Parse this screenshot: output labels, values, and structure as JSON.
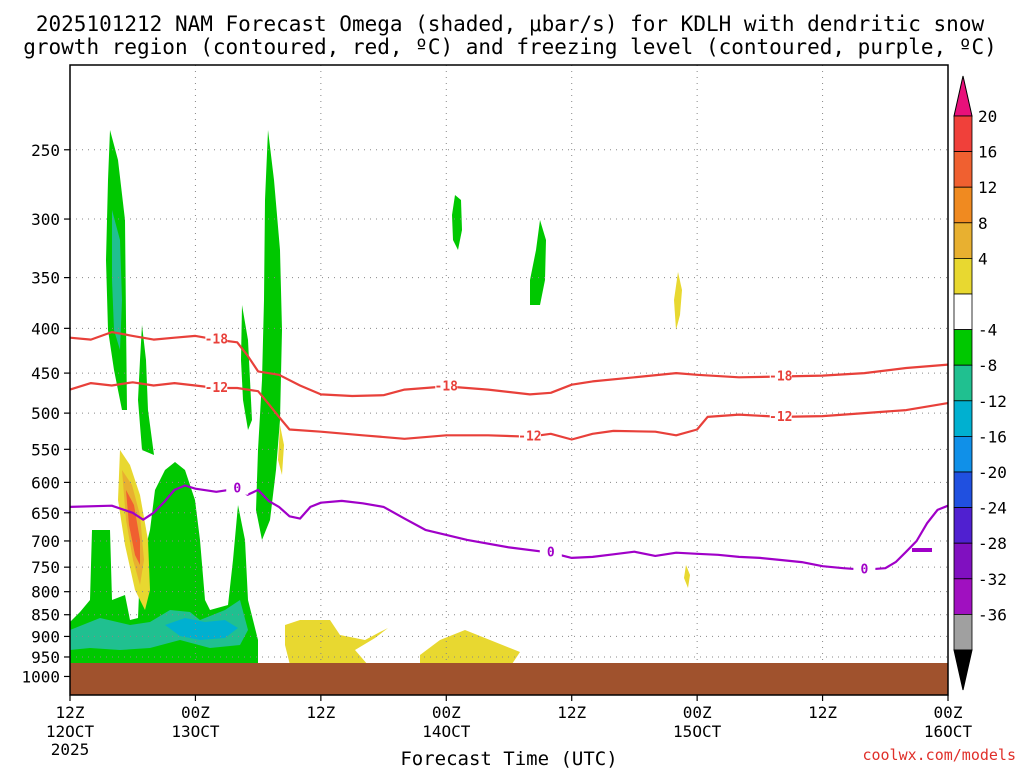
{
  "chart_data": {
    "type": "heatmap",
    "title_line1": "2025101212 NAM Forecast Omega (shaded, μbar/s) for KDLH with dendritic snow",
    "title_line2": "growth region (contoured, red, ºC) and freezing level (contoured, purple, ºC)",
    "xlabel": "Forecast Time (UTC)",
    "x_hours_range": [
      0,
      84
    ],
    "x_ticks": [
      {
        "hour": 0,
        "time": "12Z",
        "date": "12OCT",
        "year": "2025"
      },
      {
        "hour": 12,
        "time": "00Z",
        "date": "13OCT",
        "year": ""
      },
      {
        "hour": 24,
        "time": "12Z",
        "date": "",
        "year": ""
      },
      {
        "hour": 36,
        "time": "00Z",
        "date": "14OCT",
        "year": ""
      },
      {
        "hour": 48,
        "time": "12Z",
        "date": "",
        "year": ""
      },
      {
        "hour": 60,
        "time": "00Z",
        "date": "15OCT",
        "year": ""
      },
      {
        "hour": 72,
        "time": "12Z",
        "date": "",
        "year": ""
      },
      {
        "hour": 84,
        "time": "00Z",
        "date": "16OCT",
        "year": ""
      }
    ],
    "y_pressure_range_hPa": [
      1050,
      200
    ],
    "y_ticks": [
      250,
      300,
      350,
      400,
      450,
      500,
      550,
      600,
      650,
      700,
      750,
      800,
      850,
      900,
      950,
      1000
    ],
    "colorbar": {
      "labels": [
        "20",
        "16",
        "12",
        "8",
        "4",
        "-4",
        "-8",
        "-12",
        "-16",
        "-20",
        "-24",
        "-28",
        "-32",
        "-36"
      ],
      "levels": [
        20,
        16,
        12,
        8,
        4,
        -4,
        -8,
        -12,
        -16,
        -20,
        -24,
        -28,
        -32,
        -36
      ],
      "colors_top_to_bottom": [
        "#e8107a",
        "#f0403a",
        "#f06030",
        "#f08a20",
        "#e8b030",
        "#e8d830",
        "#ffffff",
        "#00c800",
        "#20c090",
        "#00b0d0",
        "#1090e8",
        "#2050e0",
        "#5020d0",
        "#8010c0",
        "#a010c0",
        "#a0a0a0",
        "#000000"
      ]
    },
    "contours": [
      {
        "name": "dgz-upper",
        "label": "-18",
        "color": "#e8403a",
        "points": [
          [
            0,
            410
          ],
          [
            2,
            412
          ],
          [
            4,
            404
          ],
          [
            6,
            408
          ],
          [
            8,
            412
          ],
          [
            10,
            410
          ],
          [
            12,
            408
          ],
          [
            14,
            412
          ],
          [
            16,
            415
          ],
          [
            17,
            430
          ],
          [
            18,
            448
          ],
          [
            20,
            452
          ],
          [
            22,
            465
          ],
          [
            24,
            476
          ],
          [
            27,
            478
          ],
          [
            30,
            477
          ],
          [
            32,
            470
          ],
          [
            36,
            466
          ],
          [
            40,
            470
          ],
          [
            44,
            476
          ],
          [
            46,
            474
          ],
          [
            48,
            464
          ],
          [
            50,
            460
          ],
          [
            54,
            455
          ],
          [
            58,
            450
          ],
          [
            60,
            452
          ],
          [
            64,
            455
          ],
          [
            68,
            454
          ],
          [
            72,
            453
          ],
          [
            76,
            450
          ],
          [
            80,
            444
          ],
          [
            84,
            440
          ]
        ]
      },
      {
        "name": "dgz-lower",
        "label": "-12",
        "color": "#e8403a",
        "points": [
          [
            0,
            470
          ],
          [
            2,
            462
          ],
          [
            4,
            465
          ],
          [
            6,
            461
          ],
          [
            8,
            465
          ],
          [
            10,
            462
          ],
          [
            12,
            465
          ],
          [
            14,
            468
          ],
          [
            16,
            468
          ],
          [
            18,
            472
          ],
          [
            19,
            488
          ],
          [
            20,
            505
          ],
          [
            21,
            522
          ],
          [
            24,
            525
          ],
          [
            28,
            530
          ],
          [
            32,
            535
          ],
          [
            36,
            530
          ],
          [
            40,
            530
          ],
          [
            44,
            532
          ],
          [
            46,
            528
          ],
          [
            48,
            536
          ],
          [
            50,
            528
          ],
          [
            52,
            524
          ],
          [
            56,
            525
          ],
          [
            58,
            530
          ],
          [
            60,
            522
          ],
          [
            61,
            505
          ],
          [
            64,
            502
          ],
          [
            68,
            505
          ],
          [
            72,
            504
          ],
          [
            76,
            500
          ],
          [
            80,
            496
          ],
          [
            84,
            487
          ]
        ]
      },
      {
        "name": "freezing-level",
        "label": "0",
        "color": "#a000c8",
        "points": [
          [
            0,
            640
          ],
          [
            4,
            638
          ],
          [
            6,
            650
          ],
          [
            7,
            662
          ],
          [
            8,
            650
          ],
          [
            9,
            632
          ],
          [
            10,
            612
          ],
          [
            11,
            605
          ],
          [
            12,
            610
          ],
          [
            14,
            615
          ],
          [
            16,
            610
          ],
          [
            17,
            620
          ],
          [
            18,
            612
          ],
          [
            19,
            630
          ],
          [
            20,
            640
          ],
          [
            21,
            656
          ],
          [
            22,
            660
          ],
          [
            23,
            640
          ],
          [
            24,
            633
          ],
          [
            26,
            630
          ],
          [
            28,
            634
          ],
          [
            30,
            640
          ],
          [
            32,
            660
          ],
          [
            34,
            680
          ],
          [
            38,
            698
          ],
          [
            42,
            712
          ],
          [
            46,
            722
          ],
          [
            48,
            732
          ],
          [
            50,
            730
          ],
          [
            52,
            725
          ],
          [
            54,
            720
          ],
          [
            56,
            728
          ],
          [
            58,
            722
          ],
          [
            60,
            724
          ],
          [
            62,
            726
          ],
          [
            64,
            730
          ],
          [
            66,
            732
          ],
          [
            68,
            736
          ],
          [
            70,
            740
          ],
          [
            72,
            748
          ],
          [
            74,
            752
          ],
          [
            76,
            755
          ],
          [
            78,
            752
          ],
          [
            79,
            740
          ],
          [
            80,
            720
          ],
          [
            81,
            700
          ],
          [
            82,
            668
          ],
          [
            83,
            645
          ],
          [
            84,
            638
          ]
        ]
      }
    ],
    "omega_regions_sign": [
      "negative (upward, green/teal)",
      "positive (downward, yellow/orange/red)"
    ],
    "terrain_color": "#a0522d"
  },
  "credit": "coolwx.com/models"
}
